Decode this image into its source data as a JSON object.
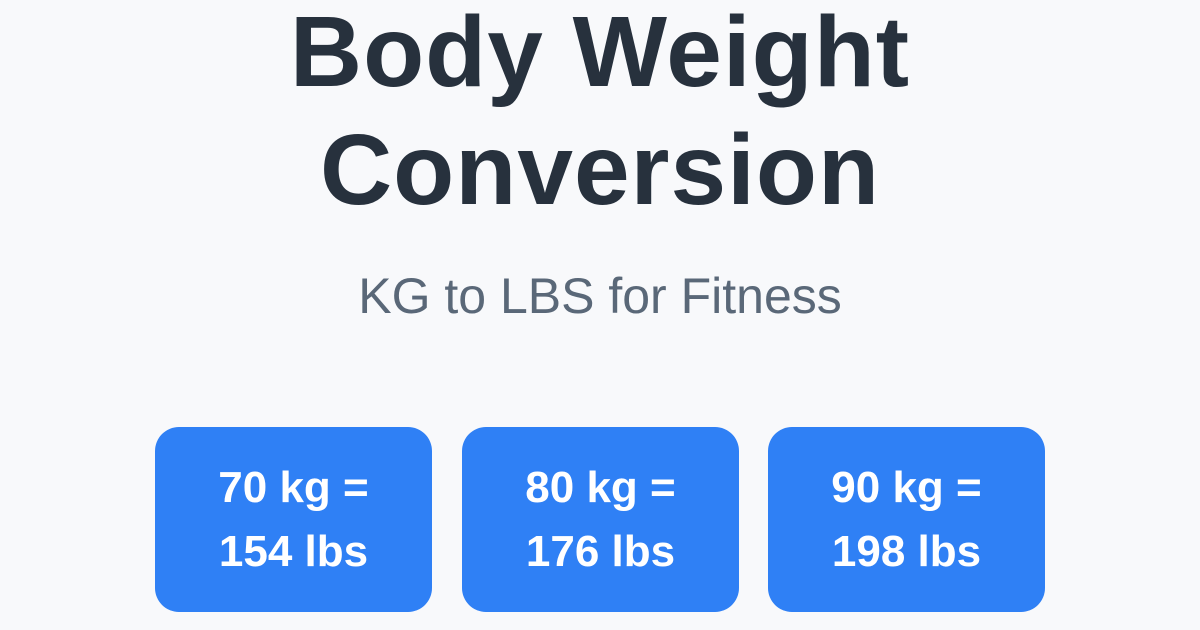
{
  "title_lines": [
    "Body Weight",
    "Conversion"
  ],
  "subtitle": "KG to LBS for Fitness",
  "cards": [
    {
      "line1": "70 kg =",
      "line2": "154 lbs"
    },
    {
      "line1": "80 kg =",
      "line2": "176 lbs"
    },
    {
      "line1": "90 kg =",
      "line2": "198 lbs"
    }
  ],
  "colors": {
    "card_bg": "#2f80f5",
    "title": "#27313d",
    "subtitle": "#5a6878",
    "background": "#f8f9fb"
  }
}
